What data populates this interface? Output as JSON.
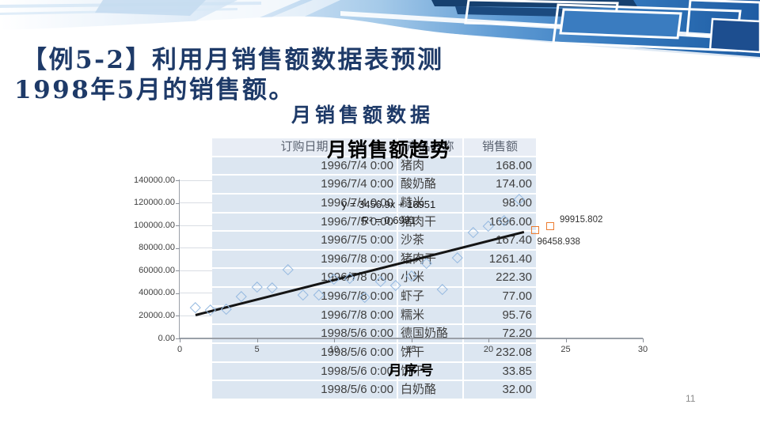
{
  "slide": {
    "title_line1": "【例5-2】利用月销售额数据表预测",
    "title_line2": "1998年5月的销售额。",
    "page_number": "11"
  },
  "table": {
    "title": "月销售额数据",
    "headers": [
      "订购日期",
      "产品名称",
      "销售额"
    ],
    "rows": [
      [
        "1996/7/4 0:00",
        "猪肉",
        "168.00"
      ],
      [
        "1996/7/4 0:00",
        "酸奶酪",
        "174.00"
      ],
      [
        "1996/7/4 0:00",
        "糙米",
        "98.00"
      ],
      [
        "1996/7/5 0:00",
        "猪肉干",
        "1696.00"
      ],
      [
        "1996/7/5 0:00",
        "沙茶",
        "167.40"
      ],
      [
        "1996/7/8 0:00",
        "猪肉干",
        "1261.40"
      ],
      [
        "1996/7/8 0:00",
        "小米",
        "222.30"
      ],
      [
        "1996/7/8 0:00",
        "虾子",
        "77.00"
      ],
      [
        "1996/7/8 0:00",
        "糯米",
        "95.76"
      ],
      [
        "1998/5/6 0:00",
        "德国奶酪",
        "72.20"
      ],
      [
        "1998/5/6 0:00",
        "饼干",
        "232.08"
      ],
      [
        "1998/5/6 0:00",
        "饼干",
        "33.85"
      ],
      [
        "1998/5/6 0:00",
        "白奶酪",
        "32.00"
      ]
    ]
  },
  "chart_data": {
    "type": "scatter",
    "title": "月销售额趋势",
    "xlabel": "月序号",
    "xlim": [
      0,
      30
    ],
    "ylim": [
      0,
      140000
    ],
    "x_ticks": [
      0,
      5,
      10,
      15,
      20,
      25,
      30
    ],
    "x_tick_labels": [
      "0",
      "5",
      "10",
      "15",
      "20",
      "25",
      "30"
    ],
    "y_ticks": [
      0,
      20000,
      40000,
      60000,
      80000,
      100000,
      120000,
      140000
    ],
    "y_tick_labels": [
      "0.00",
      "20000.00",
      "40000.00",
      "60000.00",
      "80000.00",
      "100000.00",
      "120000.00",
      "140000.00"
    ],
    "grid": true,
    "legend": false,
    "series": [
      {
        "id": "actual",
        "marker": "diamond",
        "color": "#95b9e0",
        "points": [
          [
            1,
            27900
          ],
          [
            2,
            25500
          ],
          [
            3,
            26400
          ],
          [
            4,
            37500
          ],
          [
            5,
            45600
          ],
          [
            6,
            45200
          ],
          [
            7,
            61300
          ],
          [
            8,
            38500
          ],
          [
            9,
            38500
          ],
          [
            10,
            53000
          ],
          [
            11,
            53800
          ],
          [
            12,
            36400
          ],
          [
            13,
            51000
          ],
          [
            14,
            47300
          ],
          [
            15,
            55600
          ],
          [
            16,
            66700
          ],
          [
            17,
            43500
          ],
          [
            18,
            71400
          ],
          [
            19,
            94200
          ],
          [
            20,
            99400
          ],
          [
            21,
            104900
          ],
          [
            22,
            123800
          ]
        ]
      },
      {
        "id": "forecast",
        "marker": "square",
        "color": "#ed7d31",
        "points": [
          [
            23,
            96458.938
          ],
          [
            24,
            99915.802
          ]
        ],
        "point_labels": [
          "96458.938",
          "99915.802"
        ]
      }
    ],
    "trendline": {
      "slope": 3456.9,
      "intercept": 16951,
      "x_start": 1,
      "x_end": 22.3,
      "color": "#151515",
      "equation_line1": "y = 3456.9x + 16951",
      "equation_line2": "R² = 0.6991"
    }
  },
  "colors": {
    "title_navy": "#1e3a68",
    "table_row_bg": "#dce6f1",
    "table_header_bg": "#e8edf5",
    "marker_blue": "#95b9e0",
    "marker_orange": "#ed7d31"
  }
}
